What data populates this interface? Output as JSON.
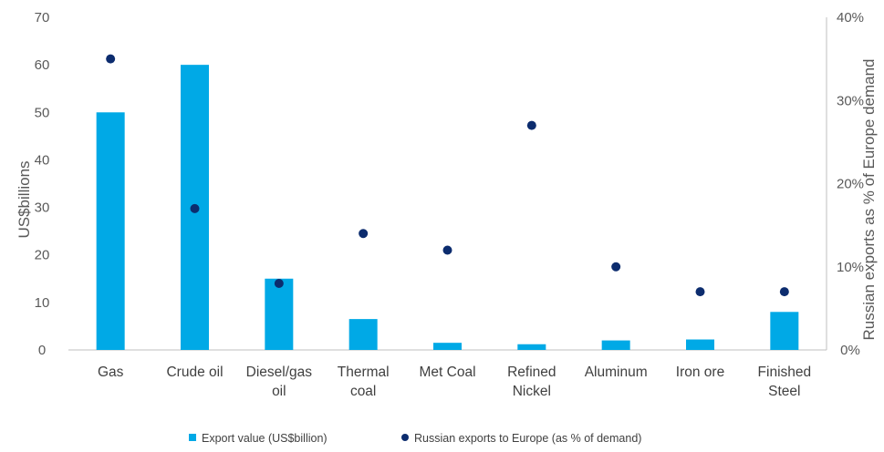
{
  "chart_data": {
    "type": "bar",
    "categories": [
      [
        "Gas"
      ],
      [
        "Crude oil"
      ],
      [
        "Diesel/gas",
        "oil"
      ],
      [
        "Thermal",
        "coal"
      ],
      [
        "Met Coal"
      ],
      [
        "Refined",
        "Nickel"
      ],
      [
        "Aluminum"
      ],
      [
        "Iron ore"
      ],
      [
        "Finished",
        "Steel"
      ]
    ],
    "series": [
      {
        "name": "Export value (US$billion)",
        "type": "bar",
        "axis": "left",
        "color": "#00A9E6",
        "values": [
          50,
          60,
          15,
          6.5,
          1.5,
          1.2,
          2,
          2.2,
          8
        ]
      },
      {
        "name": "Russian exports to Europe (as % of demand)",
        "type": "scatter",
        "axis": "right",
        "color": "#0C2C6E",
        "values": [
          35,
          17,
          8,
          14,
          12,
          27,
          10,
          7,
          7
        ]
      }
    ],
    "ylabel": "US$billions",
    "y2label": "Russian exports as % of Europe demand",
    "ylim": [
      0,
      70
    ],
    "y2lim": [
      0,
      40
    ],
    "yticks": [
      "0",
      "10",
      "20",
      "30",
      "40",
      "50",
      "60",
      "70"
    ],
    "y2ticks": [
      "0%",
      "10%",
      "20%",
      "30%",
      "40%"
    ],
    "legend_position": "bottom",
    "grid": false
  }
}
